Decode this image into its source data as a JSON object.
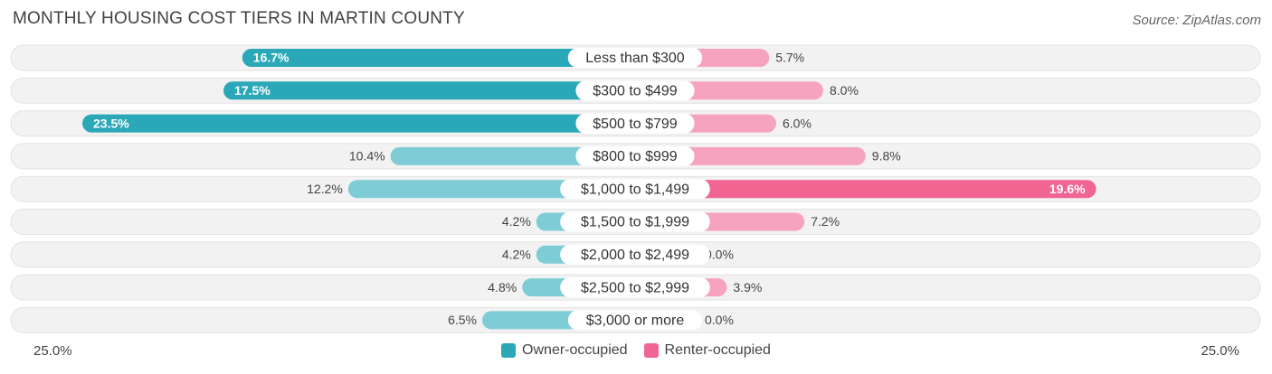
{
  "chart_data": {
    "type": "bar",
    "orientation": "horizontal-diverging",
    "title": "MONTHLY HOUSING COST TIERS IN MARTIN COUNTY",
    "source": "Source: ZipAtlas.com",
    "categories": [
      "Less than $300",
      "$300 to $499",
      "$500 to $799",
      "$800 to $999",
      "$1,000 to $1,499",
      "$1,500 to $1,999",
      "$2,000 to $2,499",
      "$2,500 to $2,999",
      "$3,000 or more"
    ],
    "series": [
      {
        "name": "Owner-occupied",
        "values": [
          16.7,
          17.5,
          23.5,
          10.4,
          12.2,
          4.2,
          4.2,
          4.8,
          6.5
        ],
        "color": "#2ba8b8",
        "light_color": "#7ecdd6"
      },
      {
        "name": "Renter-occupied",
        "values": [
          5.7,
          8.0,
          6.0,
          9.8,
          19.6,
          7.2,
          0.0,
          3.9,
          0.0
        ],
        "color": "#f06592",
        "light_color": "#f6a3bf"
      }
    ],
    "value_labels": {
      "owner": [
        "16.7%",
        "17.5%",
        "23.5%",
        "10.4%",
        "12.2%",
        "4.2%",
        "4.2%",
        "4.8%",
        "6.5%"
      ],
      "renter": [
        "5.7%",
        "8.0%",
        "6.0%",
        "9.8%",
        "19.6%",
        "7.2%",
        "0.0%",
        "3.9%",
        "0.0%"
      ]
    },
    "axis": {
      "left_label": "25.0%",
      "right_label": "25.0%",
      "max": 25.0
    },
    "legend": [
      "Owner-occupied",
      "Renter-occupied"
    ]
  }
}
